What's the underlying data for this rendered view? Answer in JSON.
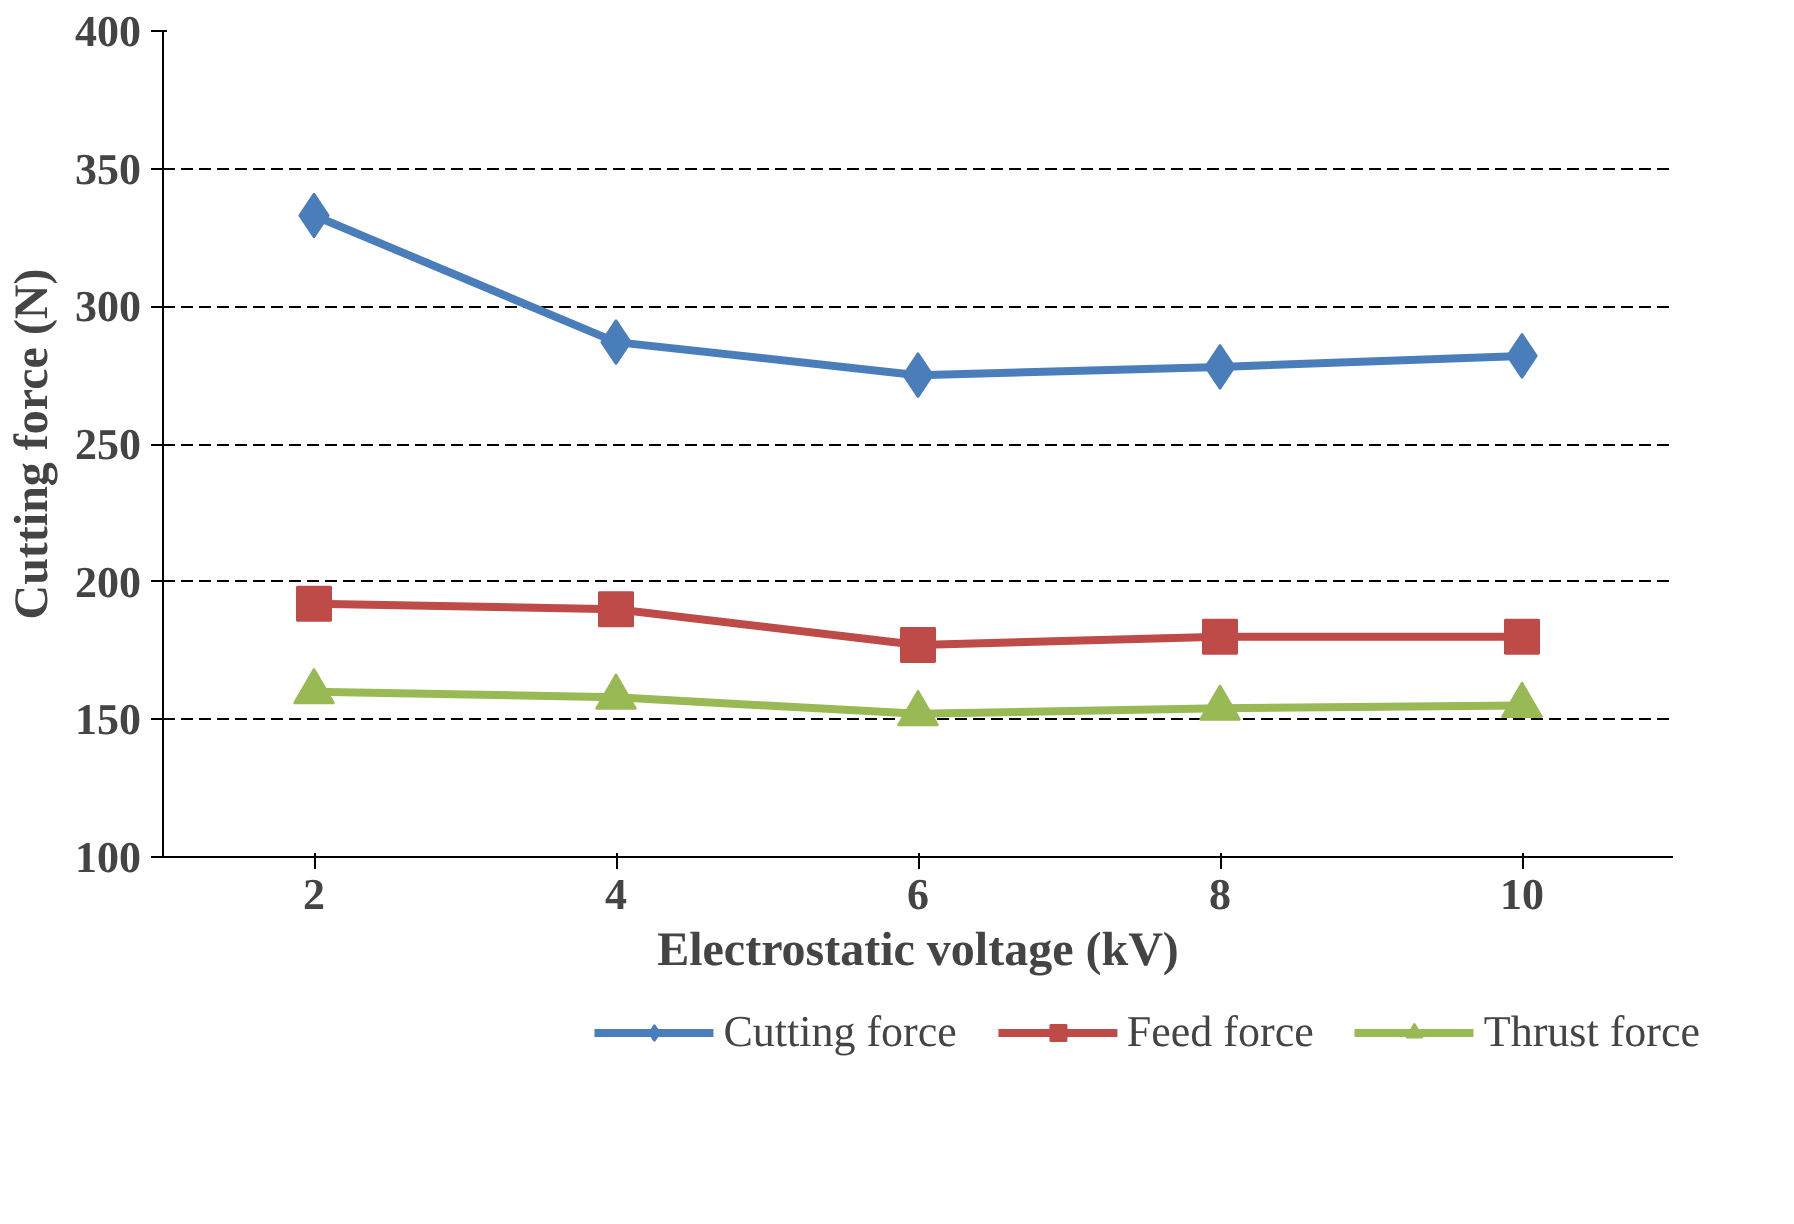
{
  "chart_data": {
    "type": "line",
    "xlabel": "Electrostatic voltage (kV)",
    "ylabel": "Cutting force (N)",
    "categories": [
      "2",
      "4",
      "6",
      "8",
      "10"
    ],
    "series": [
      {
        "name": "Cutting force",
        "color": "#4a7ebb",
        "marker": "diamond",
        "values": [
          333,
          287,
          275,
          278,
          282
        ]
      },
      {
        "name": "Feed force",
        "color": "#be4b48",
        "marker": "square",
        "values": [
          192,
          190,
          177,
          180,
          180
        ]
      },
      {
        "name": "Thrust force",
        "color": "#98b954",
        "marker": "triangle",
        "values": [
          160,
          158,
          152,
          154,
          155
        ]
      }
    ],
    "ylim": [
      100,
      400
    ],
    "yticks": [
      100,
      150,
      200,
      250,
      300,
      350,
      400
    ],
    "grid": "y",
    "legend": "bottom",
    "line_style": "solid"
  }
}
